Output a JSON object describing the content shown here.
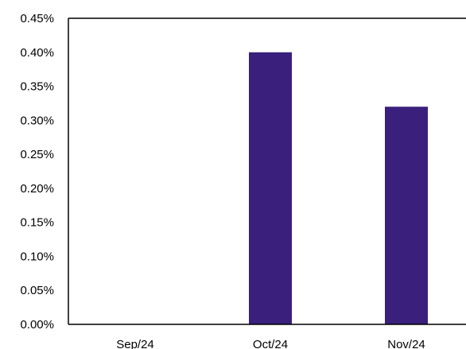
{
  "chart_data": {
    "type": "bar",
    "title": "",
    "xlabel": "",
    "ylabel": "",
    "categories": [
      "Sep/24",
      "Oct/24",
      "Nov/24"
    ],
    "values": [
      0.0,
      0.4,
      0.32
    ],
    "ylim": [
      0.0,
      0.45
    ],
    "y_ticks": [
      "0.00%",
      "0.05%",
      "0.10%",
      "0.15%",
      "0.20%",
      "0.25%",
      "0.30%",
      "0.35%",
      "0.40%",
      "0.45%"
    ],
    "y_tick_values": [
      0.0,
      0.05,
      0.1,
      0.15,
      0.2,
      0.25,
      0.3,
      0.35,
      0.4,
      0.45
    ],
    "grid": false,
    "bar_color": "#3a1f7d",
    "axis_color": "#000000"
  }
}
